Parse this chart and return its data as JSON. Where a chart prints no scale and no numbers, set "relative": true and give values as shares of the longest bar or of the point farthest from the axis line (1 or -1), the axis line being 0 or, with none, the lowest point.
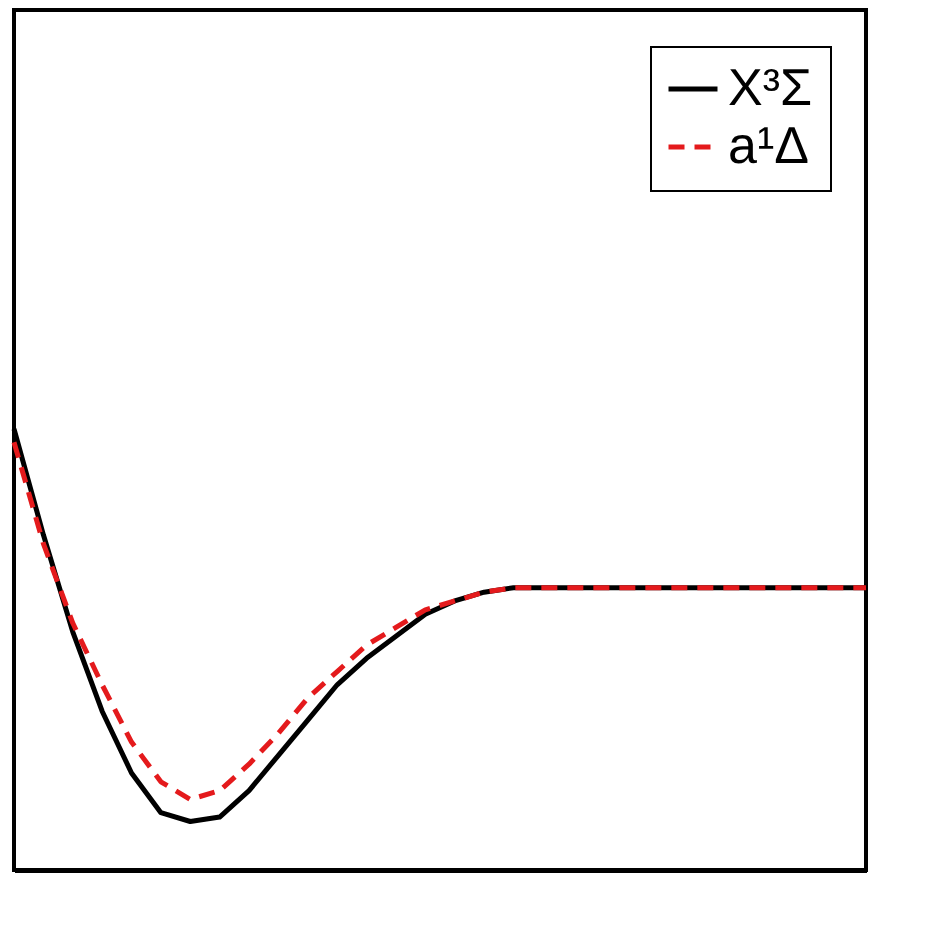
{
  "chart_data": {
    "type": "line",
    "relative": true,
    "tick_labels": false,
    "legend": "top right",
    "grid": false,
    "categories": [
      null,
      null,
      null,
      null,
      null,
      null,
      null,
      null,
      null,
      null,
      null,
      null,
      null,
      null,
      null,
      null,
      null,
      null,
      null,
      null,
      null,
      null,
      null,
      null,
      null,
      null,
      null,
      null,
      null,
      null
    ],
    "series": [
      {
        "name": "X³Σ",
        "color": "#000000",
        "line_style": "solid",
        "values": [
          1.0,
          0.76,
          0.54,
          0.36,
          0.22,
          0.13,
          0.11,
          0.12,
          0.18,
          0.26,
          0.34,
          0.42,
          0.48,
          0.53,
          0.58,
          0.61,
          0.63,
          0.64,
          0.64,
          0.64,
          0.64,
          0.64,
          0.64,
          0.64,
          0.64,
          0.64,
          0.64,
          0.64,
          0.64,
          0.64
        ]
      },
      {
        "name": "a¹Δ",
        "color": "#e41a1c",
        "line_style": "dashed",
        "values": [
          0.97,
          0.74,
          0.56,
          0.42,
          0.29,
          0.2,
          0.16,
          0.18,
          0.24,
          0.31,
          0.39,
          0.45,
          0.51,
          0.55,
          0.59,
          0.61,
          0.63,
          0.64,
          0.64,
          0.64,
          0.64,
          0.64,
          0.64,
          0.64,
          0.64,
          0.64,
          0.64,
          0.64,
          0.64,
          0.64
        ]
      }
    ]
  }
}
